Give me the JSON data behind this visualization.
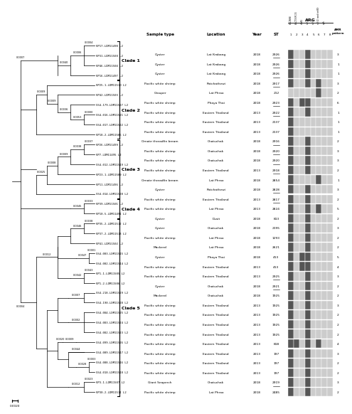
{
  "taxa": [
    "VP17-LDM11498 L2",
    "VP31-LDM11500 L2",
    "VP46-LDM11504 L2",
    "VP16-LDM11497 L2",
    "VP25-1-LDM11510 L2",
    "VP42-LDM11503 L2",
    "SS4-179-LDM11527 L2",
    "SS4-016-LDM11521 L2",
    "SS4-017-LDM11522 L2",
    "VP18-2-LDM11506 L2",
    "VP26-LDM11499 L2",
    "VP7-LDM11495 L2",
    "SS4-012-LDM11519 L2",
    "VP23-1-LDM11509 L2",
    "VP11-LDM11496 L2",
    "SS4-014-LDM11520 L2",
    "VP39-LDM11501 L2",
    "VP10-5-LDM11491 L2",
    "VP35-2-LDM11512 L2",
    "VP37-2-LDM11513 L2",
    "VP41-LDM11502 L2",
    "SS4-003-LDM11515 L2",
    "SS4-002-LDM11514 L2",
    "VP1-1-LDM11505 L2",
    "VP1-2-LDM11506 L2",
    "SS4-218-LDM11529 L2",
    "SS4-190-LDM11528 L2",
    "SS4-084-LDM11525 L2",
    "SS4-083-LDM11524 L2",
    "SS4-082-LDM11523 L2",
    "SS4-099-LDM11526 L2",
    "SS4-009-LDM11517 L2",
    "SS4-008-LDM11516 L2",
    "SS4-010-LDM11518 L2",
    "VP3-1-LDM11507 L2",
    "VP30-2-LDM11511 L2"
  ],
  "sample_type": [
    "Oyster",
    "Oyster",
    "Oyster",
    "Pacific white shrimp",
    "Grouper",
    "Pacific white shrimp",
    "Pacific white shrimp",
    "Pacific white shrimp",
    "Pacific white shrimp",
    "Ornate threadfin bream",
    "Pacific white shrimp",
    "Pacific white shrimp",
    "Pacific white shrimp",
    "Ornate threadfin bream",
    "Oyster",
    "Pacific white shrimp",
    "Pacific white shrimp",
    "Oyster",
    "Oyster",
    "Pacific white shrimp",
    "Mackerel",
    "Oyster",
    "Pacific white shrimp",
    "Pacific white shrimp",
    "Oyster",
    "Mackerel",
    "Pacific white shrimp",
    "Pacific white shrimp",
    "Pacific white shrimp",
    "Pacific white shrimp",
    "Pacific white shrimp",
    "Pacific white shrimp",
    "Pacific white shrimp",
    "Pacific white shrimp",
    "Giant Seaperch",
    "Pacific white shrimp"
  ],
  "location": [
    "Lat Krabang",
    "Lat Krabang",
    "Lat Krabang",
    "Ratchathewi",
    "Lat Phrao",
    "Phaya Thai",
    "Eastern Thailand",
    "Eastern Thailand",
    "Eastern Thailand",
    "Chatuchak",
    "Chatuchak",
    "Chatuchak",
    "Eastern Thailand",
    "Lat Phrao",
    "Ratchathewi",
    "Eastern Thailand",
    "Lat Phrao",
    "Dusit",
    "Chatuchak",
    "Lat Phrao",
    "Lat Phrao",
    "Phaya Thai",
    "Eastern Thailand",
    "Eastern Thailand",
    "Chatuchak",
    "Chatuchak",
    "Eastern Thailand",
    "Eastern Thailand",
    "Eastern Thailand",
    "Eastern Thailand",
    "Eastern Thailand",
    "Eastern Thailand",
    "Eastern Thailand",
    "Eastern Thailand",
    "Chatuchak",
    "Lat Phrao"
  ],
  "year": [
    2018,
    2018,
    2018,
    2018,
    2018,
    2018,
    2013,
    2013,
    2013,
    2018,
    2018,
    2018,
    2013,
    2018,
    2018,
    2013,
    2013,
    2018,
    2018,
    2018,
    2018,
    2018,
    2013,
    2013,
    2018,
    2018,
    2013,
    2013,
    2013,
    2013,
    2013,
    2013,
    2013,
    2013,
    2018,
    2018
  ],
  "ST": [
    "2926",
    "2926",
    "2926",
    "2917",
    "212",
    "2923",
    "2922",
    "2137",
    "2137",
    "2916",
    "2920",
    "2920",
    "2918",
    "2854",
    "2828",
    "2817",
    "2824",
    "813",
    "2195",
    "1293",
    "2621",
    "413",
    "413",
    "2925",
    "2921",
    "1925",
    "1925",
    "1925",
    "1925",
    "1925",
    "818",
    "197",
    "197",
    "197",
    "2919",
    "2485"
  ],
  "ST_underline": [
    true,
    true,
    true,
    true,
    false,
    true,
    true,
    false,
    false,
    true,
    true,
    true,
    true,
    false,
    true,
    true,
    false,
    false,
    false,
    false,
    false,
    false,
    false,
    true,
    true,
    false,
    false,
    false,
    false,
    false,
    false,
    false,
    false,
    false,
    true,
    false
  ],
  "ARG": [
    [
      1,
      0,
      0,
      1,
      0,
      0,
      0,
      0
    ],
    [
      1,
      0,
      0,
      1,
      0,
      0,
      0,
      0
    ],
    [
      1,
      0,
      0,
      1,
      0,
      0,
      0,
      0
    ],
    [
      1,
      0,
      0,
      1,
      0,
      1,
      0,
      0
    ],
    [
      0,
      0,
      0,
      0,
      0,
      1,
      0,
      0
    ],
    [
      1,
      0,
      1,
      1,
      0,
      0,
      0,
      0
    ],
    [
      1,
      0,
      0,
      1,
      0,
      0,
      0,
      0
    ],
    [
      1,
      0,
      0,
      0,
      0,
      0,
      0,
      0
    ],
    [
      1,
      0,
      0,
      0,
      0,
      0,
      0,
      0
    ],
    [
      1,
      0,
      0,
      1,
      0,
      0,
      0,
      0
    ],
    [
      1,
      0,
      0,
      1,
      0,
      0,
      0,
      0
    ],
    [
      1,
      0,
      0,
      1,
      0,
      0,
      0,
      0
    ],
    [
      1,
      0,
      0,
      1,
      0,
      0,
      0,
      0
    ],
    [
      1,
      0,
      0,
      0,
      0,
      1,
      0,
      0
    ],
    [
      1,
      0,
      0,
      1,
      0,
      0,
      0,
      0
    ],
    [
      1,
      0,
      0,
      1,
      0,
      0,
      0,
      0
    ],
    [
      1,
      0,
      0,
      1,
      0,
      1,
      0,
      0
    ],
    [
      1,
      0,
      0,
      1,
      0,
      0,
      0,
      0
    ],
    [
      1,
      0,
      0,
      1,
      0,
      0,
      0,
      0
    ],
    [
      1,
      0,
      0,
      1,
      0,
      0,
      0,
      0
    ],
    [
      1,
      0,
      0,
      1,
      0,
      0,
      0,
      0
    ],
    [
      1,
      0,
      1,
      1,
      0,
      0,
      0,
      0
    ],
    [
      1,
      0,
      1,
      1,
      0,
      0,
      0,
      0
    ],
    [
      1,
      0,
      0,
      1,
      0,
      0,
      0,
      0
    ],
    [
      1,
      0,
      0,
      1,
      0,
      0,
      0,
      0
    ],
    [
      1,
      0,
      0,
      1,
      0,
      0,
      0,
      0
    ],
    [
      1,
      0,
      0,
      1,
      0,
      0,
      0,
      0
    ],
    [
      1,
      0,
      0,
      1,
      0,
      0,
      0,
      0
    ],
    [
      1,
      0,
      0,
      1,
      0,
      0,
      0,
      0
    ],
    [
      1,
      0,
      0,
      1,
      0,
      0,
      0,
      0
    ],
    [
      1,
      1,
      0,
      1,
      0,
      1,
      0,
      0
    ],
    [
      1,
      0,
      0,
      1,
      0,
      0,
      0,
      0
    ],
    [
      1,
      0,
      0,
      1,
      0,
      0,
      0,
      0
    ],
    [
      1,
      0,
      0,
      1,
      0,
      0,
      0,
      0
    ],
    [
      1,
      0,
      0,
      1,
      0,
      0,
      0,
      0
    ],
    [
      1,
      0,
      0,
      1,
      0,
      0,
      0,
      0
    ]
  ],
  "AMR_pattern": [
    3,
    1,
    1,
    3,
    2,
    6,
    1,
    1,
    1,
    2,
    3,
    3,
    2,
    1,
    3,
    2,
    5,
    2,
    3,
    2,
    2,
    5,
    4,
    3,
    2,
    2,
    3,
    2,
    2,
    2,
    4,
    3,
    2,
    2,
    3,
    2
  ],
  "clades": [
    {
      "name": "Clade 1",
      "start": 0,
      "end": 3
    },
    {
      "name": "Clade 2",
      "start": 4,
      "end": 9
    },
    {
      "name": "Clade 3",
      "start": 10,
      "end": 15
    },
    {
      "name": "Clade 4",
      "start": 16,
      "end": 17
    },
    {
      "name": "Clade 5",
      "start": 18,
      "end": 35
    }
  ],
  "ARG_col_labels": [
    "1",
    "2",
    "3",
    "4",
    "5",
    "6",
    "7",
    "8"
  ],
  "ARG_headers": [
    "blaCARB",
    "blaCTX-M-15",
    "dfrA1",
    "sul(2)",
    "sul(3)",
    "sul(2) and tet(B)",
    "aph",
    ""
  ],
  "bg_color": "#ffffff",
  "filled_color": "#555555",
  "empty_color": "#cccccc",
  "line_color": "#000000"
}
